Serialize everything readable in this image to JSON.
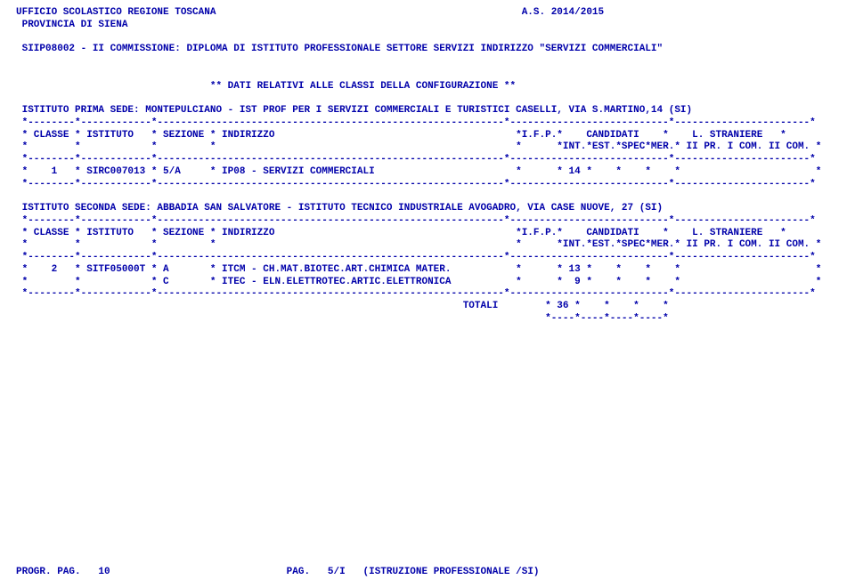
{
  "header": {
    "line1_left": "UFFICIO SCOLASTICO REGIONE TOSCANA",
    "line1_right": "A.S. 2014/2015",
    "line2": "PROVINCIA DI SIENA",
    "line4": "SIIP08002 - II COMMISSIONE: DIPLOMA DI ISTITUTO PROFESSIONALE SETTORE SERVIZI INDIRIZZO \"SERVIZI COMMERCIALI\""
  },
  "config": {
    "title": "** DATI RELATIVI ALLE CLASSI DELLA CONFIGURAZIONE **",
    "sede1_title": "ISTITUTO PRIMA SEDE: MONTEPULCIANO - IST PROF PER I SERVIZI COMMERCIALI E TURISTICI CASELLI, VIA S.MARTINO,14 (SI)",
    "sede2_title": "ISTITUTO SECONDA SEDE: ABBADIA SAN SALVATORE - ISTITUTO TECNICO INDUSTRIALE AVOGADRO, VIA CASE NUOVE, 27 (SI)"
  },
  "table_header": {
    "line1": "* CLASSE * ISTITUTO   * SEZIONE * INDIRIZZO                                         *I.F.P.*    CANDIDATI    *    L. STRANIERE   *",
    "line2": "*        *            *         *                                                   *      *INT.*EST.*SPEC*MER.* II PR. I COM. II COM. *"
  },
  "sep": "*--------*------------*-----------------------------------------------------------*---------------------------*-----------------------*",
  "rows": {
    "sede1_row1": "*    1   * SIRC007013 * 5/A     * IP08 - SERVIZI COMMERCIALI                        *      * 14 *    *    *    *                       *",
    "sede2_row1": "*    2   * SITF05000T * A       * ITCM - CH.MAT.BIOTEC.ART.CHIMICA MATER.           *      * 13 *    *    *    *                       *",
    "sede2_row2": "*        *            * C       * ITEC - ELN.ELETTROTEC.ARTIC.ELETTRONICA           *      *  9 *    *    *    *                       *"
  },
  "totals": {
    "line": "                                                                           TOTALI        * 36 *    *    *    *",
    "rule": "                                                                                         *----*----*----*----*"
  },
  "footer": {
    "left": "PROGR. PAG.   10",
    "right": "PAG.   5/I   (ISTRUZIONE PROFESSIONALE /SI)"
  },
  "layout": {
    "line1_pad": 86,
    "config_indent": 33,
    "footer_gap": 30
  }
}
